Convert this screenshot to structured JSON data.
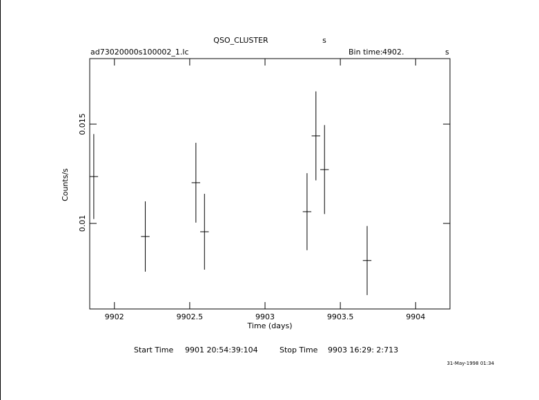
{
  "chart_data": {
    "type": "errorbar",
    "title": "QSO_CLUSTER",
    "title_unit": "s",
    "filename": "ad73020000s100002_1.lc",
    "bin_time_label": "Bin time:",
    "bin_time": "4902.",
    "bin_time_unit": "s",
    "xlabel": "Time (days)",
    "ylabel": "Counts/s",
    "start_time_label": "Start Time",
    "start_time": "9901 20:54:39:104",
    "stop_time_label": "Stop Time",
    "stop_time": "9903 16:29: 2:713",
    "timestamp": "31-May-1998 01:34",
    "xlim": [
      9901.836,
      9904.228
    ],
    "ylim": [
      0.00569,
      0.0183
    ],
    "xticks": [
      9902,
      9902.5,
      9903,
      9903.5,
      9904
    ],
    "yticks": [
      0.01,
      0.015
    ],
    "color": "#000000",
    "x": [
      9901.863,
      9902.205,
      9902.541,
      9902.598,
      9903.279,
      9903.338,
      9903.395,
      9903.678
    ],
    "xerr": [
      0.0284,
      0.0284,
      0.0284,
      0.0284,
      0.0284,
      0.0284,
      0.0284,
      0.0284
    ],
    "values": [
      0.01236,
      0.00934,
      0.01205,
      0.00958,
      0.01059,
      0.01441,
      0.01271,
      0.00813
    ],
    "errors": [
      0.00214,
      0.00177,
      0.00201,
      0.00191,
      0.00194,
      0.00224,
      0.00224,
      0.00174
    ]
  }
}
